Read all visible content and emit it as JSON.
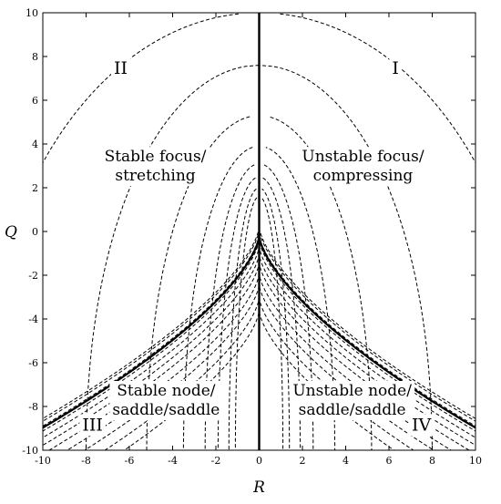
{
  "chart_data": {
    "type": "line",
    "xlabel": "R",
    "ylabel": "Q",
    "xlim": [
      -10,
      10
    ],
    "ylim": [
      -10,
      10
    ],
    "x_ticks": [
      "-10",
      "-8",
      "-6",
      "-4",
      "-2",
      "0",
      "2",
      "4",
      "6",
      "8",
      "10"
    ],
    "y_ticks": [
      "-10",
      "-8",
      "-6",
      "-4",
      "-2",
      "0",
      "2",
      "4",
      "6",
      "8",
      "10"
    ],
    "grid": false,
    "regions": [
      {
        "roman": "I",
        "x": 6.3,
        "y": 7.2
      },
      {
        "roman": "II",
        "x": -6.4,
        "y": 7.2
      },
      {
        "roman": "III",
        "x": -7.7,
        "y": -9.1
      },
      {
        "roman": "IV",
        "x": 7.5,
        "y": -9.1
      }
    ],
    "annotations": [
      {
        "lines": [
          "Stable focus/",
          "stretching"
        ],
        "x": -4.8,
        "y": 3.2
      },
      {
        "lines": [
          "Unstable focus/",
          "compressing"
        ],
        "x": 4.8,
        "y": 3.2
      },
      {
        "lines": [
          "Stable node/",
          "saddle/saddle"
        ],
        "x": -4.3,
        "y": -7.5
      },
      {
        "lines": [
          "Unstable node/",
          "saddle/saddle"
        ],
        "x": 4.3,
        "y": -7.5
      }
    ],
    "solid_curves": [
      {
        "name": "R = 0 vertical line",
        "x": [
          0,
          0
        ],
        "y": [
          -10,
          10
        ]
      },
      {
        "name": "discriminant curve",
        "equation": "27R^2/4 + Q^3 = 0",
        "cusp_q": -0.2
      }
    ],
    "upper_dashed_contours": {
      "apex_q": [
        1.6,
        2.0,
        2.5,
        3.1,
        3.9,
        5.3,
        7.6,
        10.0
      ],
      "asymptote_r": [
        1.1,
        1.4,
        1.9,
        2.5,
        3.5,
        5.2,
        8.0,
        13.0
      ]
    },
    "lower_dashed_contours": {
      "offset_q": [
        -0.35,
        -0.65,
        -1.0,
        -1.4,
        -1.9,
        -2.4,
        -3.0,
        -3.6
      ],
      "band_offsets_q": [
        -0.12,
        0.1,
        0.22
      ]
    }
  }
}
